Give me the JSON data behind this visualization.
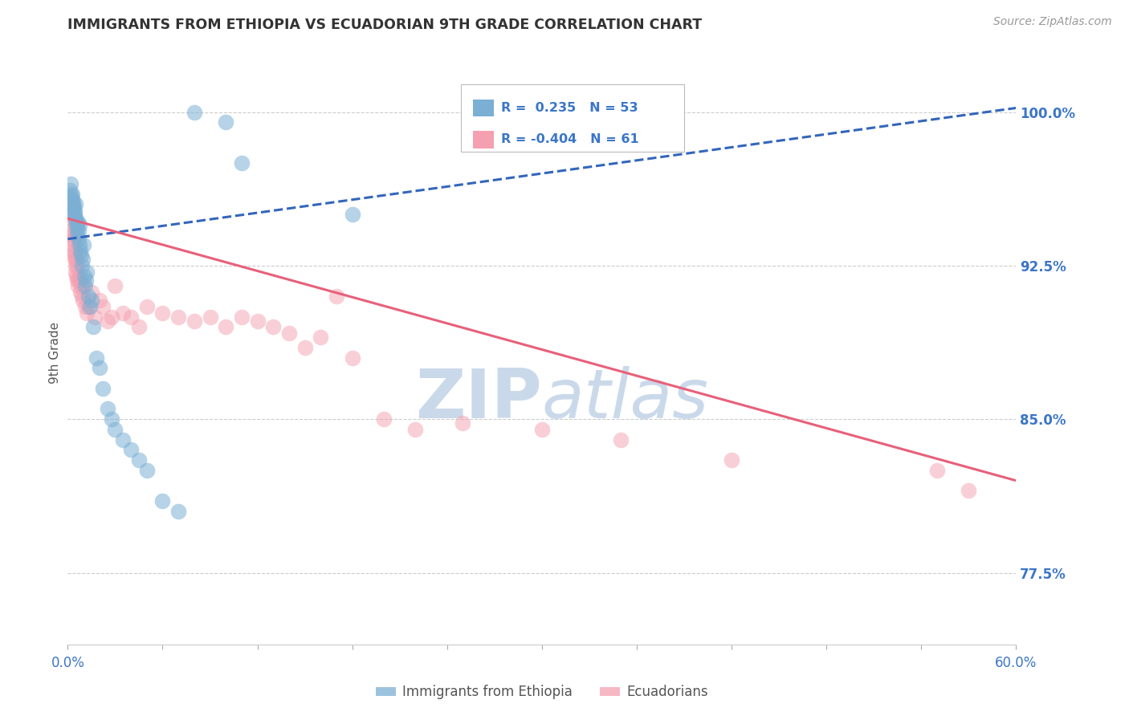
{
  "title": "IMMIGRANTS FROM ETHIOPIA VS ECUADORIAN 9TH GRADE CORRELATION CHART",
  "source": "Source: ZipAtlas.com",
  "ylabel": "9th Grade",
  "yticks_right": [
    100.0,
    92.5,
    85.0,
    77.5
  ],
  "ytick_labels_right": [
    "100.0%",
    "92.5%",
    "85.0%",
    "77.5%"
  ],
  "xmin": 0.0,
  "xmax": 60.0,
  "ymin": 74.0,
  "ymax": 102.5,
  "blue_R": 0.235,
  "blue_N": 53,
  "pink_R": -0.404,
  "pink_N": 61,
  "legend_label_blue": "Immigrants from Ethiopia",
  "legend_label_pink": "Ecuadorians",
  "blue_color": "#7BAFD4",
  "pink_color": "#F4A0B0",
  "blue_line_color": "#3366BB",
  "pink_line_color": "#E8607A",
  "axis_label_color": "#3B76C8",
  "title_color": "#333333",
  "watermark_color": "#C5D5E8",
  "blue_x": [
    0.15,
    0.18,
    0.2,
    0.22,
    0.25,
    0.28,
    0.3,
    0.32,
    0.35,
    0.38,
    0.4,
    0.42,
    0.45,
    0.48,
    0.5,
    0.52,
    0.55,
    0.58,
    0.6,
    0.65,
    0.68,
    0.7,
    0.72,
    0.75,
    0.8,
    0.85,
    0.9,
    0.95,
    1.0,
    1.05,
    1.1,
    1.15,
    1.2,
    1.3,
    1.4,
    1.5,
    1.6,
    1.8,
    2.0,
    2.2,
    2.5,
    2.8,
    3.0,
    3.5,
    4.0,
    4.5,
    5.0,
    6.0,
    7.0,
    8.0,
    10.0,
    11.0,
    18.0
  ],
  "blue_y": [
    96.2,
    95.8,
    96.5,
    95.5,
    95.9,
    96.0,
    95.7,
    95.3,
    95.6,
    95.1,
    95.4,
    95.0,
    95.2,
    94.8,
    95.5,
    94.5,
    94.7,
    94.3,
    94.0,
    94.6,
    93.8,
    94.2,
    93.5,
    94.5,
    93.2,
    93.0,
    92.5,
    92.8,
    93.5,
    92.0,
    91.5,
    91.8,
    92.2,
    91.0,
    90.5,
    90.8,
    89.5,
    88.0,
    87.5,
    86.5,
    85.5,
    85.0,
    84.5,
    84.0,
    83.5,
    83.0,
    82.5,
    81.0,
    80.5,
    100.0,
    99.5,
    97.5,
    95.0
  ],
  "pink_x": [
    0.15,
    0.18,
    0.22,
    0.25,
    0.28,
    0.3,
    0.32,
    0.35,
    0.38,
    0.4,
    0.42,
    0.45,
    0.48,
    0.5,
    0.52,
    0.55,
    0.58,
    0.6,
    0.65,
    0.7,
    0.75,
    0.8,
    0.85,
    0.9,
    0.95,
    1.0,
    1.1,
    1.2,
    1.3,
    1.5,
    1.7,
    2.0,
    2.2,
    2.5,
    2.8,
    3.0,
    3.5,
    4.0,
    4.5,
    5.0,
    6.0,
    7.0,
    8.0,
    9.0,
    10.0,
    11.0,
    12.0,
    13.0,
    14.0,
    15.0,
    16.0,
    17.0,
    18.0,
    20.0,
    22.0,
    25.0,
    30.0,
    35.0,
    42.0,
    55.0,
    57.0
  ],
  "pink_y": [
    95.0,
    94.5,
    94.8,
    94.2,
    93.8,
    94.0,
    93.5,
    93.2,
    93.0,
    93.8,
    92.8,
    93.2,
    92.5,
    92.2,
    92.8,
    92.0,
    91.8,
    92.5,
    91.5,
    91.8,
    92.0,
    91.2,
    91.5,
    91.0,
    90.8,
    91.5,
    90.5,
    90.2,
    90.5,
    91.2,
    90.0,
    90.8,
    90.5,
    89.8,
    90.0,
    91.5,
    90.2,
    90.0,
    89.5,
    90.5,
    90.2,
    90.0,
    89.8,
    90.0,
    89.5,
    90.0,
    89.8,
    89.5,
    89.2,
    88.5,
    89.0,
    91.0,
    88.0,
    85.0,
    84.5,
    84.8,
    84.5,
    84.0,
    83.0,
    82.5,
    81.5
  ],
  "blue_trendline_x": [
    0.0,
    60.0
  ],
  "blue_trendline_y": [
    93.8,
    100.2
  ],
  "pink_trendline_x": [
    0.0,
    60.0
  ],
  "pink_trendline_y": [
    94.8,
    82.0
  ],
  "xtick_positions": [
    0.0,
    6.0,
    12.0,
    18.0,
    24.0,
    30.0,
    36.0,
    42.0,
    48.0,
    54.0,
    60.0
  ],
  "xtick_labels": [
    "0.0%",
    "",
    "",
    "",
    "",
    "",
    "",
    "",
    "",
    "",
    "60.0%"
  ]
}
